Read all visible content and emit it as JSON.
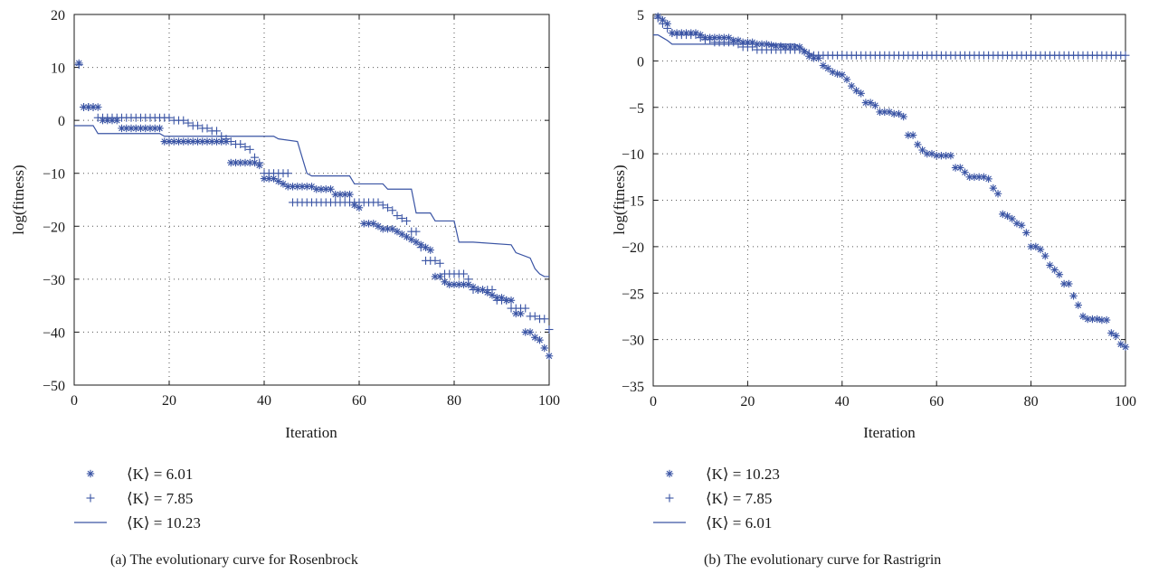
{
  "colors": {
    "series": "#3a54a4",
    "axis": "#1a1a1a",
    "grid": "#555555"
  },
  "chart_data": [
    {
      "type": "line",
      "caption": "(a)  The evolutionary curve for Rosenbrock",
      "xlabel": "Iteration",
      "ylabel": "log(fitness)",
      "xlim": [
        0,
        100
      ],
      "ylim": [
        -50,
        20
      ],
      "xticks": [
        "0",
        "20",
        "40",
        "60",
        "80",
        "100"
      ],
      "yticks": [
        "20",
        "10",
        "0",
        "−10",
        "−20",
        "−30",
        "−40",
        "−50"
      ],
      "grid": true,
      "legend_position": "below-left",
      "series": [
        {
          "name": "⟨K⟩ = 6.01",
          "marker": "asterisk",
          "x": [
            1,
            2,
            3,
            4,
            5,
            6,
            7,
            8,
            9,
            10,
            11,
            12,
            13,
            14,
            15,
            16,
            17,
            18,
            19,
            20,
            21,
            22,
            23,
            24,
            25,
            26,
            27,
            28,
            29,
            30,
            31,
            32,
            33,
            34,
            35,
            36,
            37,
            38,
            39,
            40,
            41,
            42,
            43,
            44,
            45,
            46,
            47,
            48,
            49,
            50,
            51,
            52,
            53,
            54,
            55,
            56,
            57,
            58,
            59,
            60,
            61,
            62,
            63,
            64,
            65,
            66,
            67,
            68,
            69,
            70,
            71,
            72,
            73,
            74,
            75,
            76,
            77,
            78,
            79,
            80,
            81,
            82,
            83,
            84,
            85,
            86,
            87,
            88,
            89,
            90,
            91,
            92,
            93,
            94,
            95,
            96,
            97,
            98,
            99,
            100
          ],
          "y": [
            10.8,
            2.5,
            2.5,
            2.5,
            2.5,
            0,
            0,
            0,
            0,
            -1.5,
            -1.5,
            -1.5,
            -1.5,
            -1.5,
            -1.5,
            -1.5,
            -1.5,
            -1.5,
            -4,
            -4,
            -4,
            -4,
            -4,
            -4,
            -4,
            -4,
            -4,
            -4,
            -4,
            -4,
            -4,
            -4,
            -8,
            -8,
            -8,
            -8,
            -8,
            -8,
            -8.5,
            -11,
            -11,
            -11,
            -11.5,
            -12,
            -12.5,
            -12.5,
            -12.5,
            -12.5,
            -12.5,
            -12.5,
            -13,
            -13,
            -13,
            -13,
            -14,
            -14,
            -14,
            -14,
            -16,
            -16.5,
            -19.5,
            -19.5,
            -19.5,
            -20,
            -20.5,
            -20.5,
            -20.5,
            -21,
            -21.5,
            -22,
            -22.5,
            -23,
            -23.5,
            -24,
            -24.5,
            -29.5,
            -29.5,
            -30.5,
            -31,
            -31,
            -31,
            -31,
            -31,
            -31.5,
            -32,
            -32,
            -32.5,
            -33,
            -33.5,
            -33.5,
            -34,
            -34,
            -36.5,
            -36.5,
            -40,
            -40,
            -41,
            -41.5,
            -43,
            -44.5
          ]
        },
        {
          "name": "⟨K⟩ = 7.85",
          "marker": "plus",
          "x": [
            1,
            2,
            3,
            4,
            5,
            6,
            7,
            8,
            9,
            10,
            11,
            12,
            13,
            14,
            15,
            16,
            17,
            18,
            19,
            20,
            21,
            22,
            23,
            24,
            25,
            26,
            27,
            28,
            29,
            30,
            31,
            32,
            33,
            34,
            35,
            36,
            37,
            38,
            39,
            40,
            41,
            42,
            43,
            44,
            45,
            46,
            47,
            48,
            49,
            50,
            51,
            52,
            53,
            54,
            55,
            56,
            57,
            58,
            59,
            60,
            61,
            62,
            63,
            64,
            65,
            66,
            67,
            68,
            69,
            70,
            71,
            72,
            73,
            74,
            75,
            76,
            77,
            78,
            79,
            80,
            81,
            82,
            83,
            84,
            85,
            86,
            87,
            88,
            89,
            90,
            91,
            92,
            93,
            94,
            95,
            96,
            97,
            98,
            99,
            100
          ],
          "y": [
            10.5,
            2.5,
            2.5,
            2.5,
            0.5,
            0.5,
            0.5,
            0.5,
            0.5,
            0.5,
            0.5,
            0.5,
            0.5,
            0.5,
            0.5,
            0.5,
            0.5,
            0.5,
            0.5,
            0.5,
            0,
            0,
            0,
            -0.5,
            -1,
            -1,
            -1.5,
            -1.5,
            -2,
            -2,
            -3,
            -3.5,
            -4,
            -4.5,
            -4.5,
            -5,
            -5.5,
            -7,
            -8,
            -10,
            -10,
            -10,
            -10,
            -10,
            -10,
            -15.5,
            -15.5,
            -15.5,
            -15.5,
            -15.5,
            -15.5,
            -15.5,
            -15.5,
            -15.5,
            -15.5,
            -15.5,
            -15.5,
            -15.5,
            -15.5,
            -15.5,
            -15.5,
            -15.5,
            -15.5,
            -15.5,
            -16,
            -16.5,
            -17,
            -18,
            -18.5,
            -19,
            -21,
            -21,
            -24,
            -26.5,
            -26.5,
            -26.5,
            -27,
            -29,
            -29,
            -29,
            -29,
            -29,
            -30,
            -32,
            -32,
            -32,
            -32,
            -32,
            -34,
            -34,
            -34,
            -35.5,
            -35.5,
            -35.5,
            -35.5,
            -37,
            -37,
            -37.5,
            -37.5,
            -39.5
          ]
        },
        {
          "name": "⟨K⟩ = 10.23",
          "marker": "line",
          "x": [
            0,
            4,
            5,
            18,
            19,
            30,
            31,
            42,
            43,
            47,
            48,
            49,
            50,
            58,
            59,
            65,
            66,
            71,
            72,
            75,
            76,
            80,
            81,
            83,
            84,
            92,
            93,
            96,
            97,
            98,
            99,
            100
          ],
          "y": [
            -1,
            -1,
            -2.5,
            -2.5,
            -3,
            -3,
            -3,
            -3,
            -3.5,
            -4,
            -7,
            -10,
            -10.5,
            -10.5,
            -12,
            -12,
            -13,
            -13,
            -17.5,
            -17.5,
            -19,
            -19,
            -23,
            -23,
            -23,
            -23.5,
            -25,
            -26,
            -28,
            -29,
            -29.5,
            -29.5
          ]
        }
      ]
    },
    {
      "type": "line",
      "caption": "(b)  The evolutionary curve for Rastrigrin",
      "xlabel": "Iteration",
      "ylabel": "log(fitness)",
      "xlim": [
        0,
        100
      ],
      "ylim": [
        -35,
        5
      ],
      "xticks": [
        "0",
        "20",
        "40",
        "60",
        "80",
        "100"
      ],
      "yticks": [
        "5",
        "0",
        "−5",
        "−10",
        "−15",
        "−20",
        "−25",
        "−30",
        "−35"
      ],
      "grid": true,
      "legend_position": "below-left",
      "series": [
        {
          "name": "⟨K⟩ = 10.23",
          "marker": "asterisk",
          "x": [
            1,
            2,
            3,
            4,
            5,
            6,
            7,
            8,
            9,
            10,
            11,
            12,
            13,
            14,
            15,
            16,
            17,
            18,
            19,
            20,
            21,
            22,
            23,
            24,
            25,
            26,
            27,
            28,
            29,
            30,
            31,
            32,
            33,
            34,
            35,
            36,
            37,
            38,
            39,
            40,
            41,
            42,
            43,
            44,
            45,
            46,
            47,
            48,
            49,
            50,
            51,
            52,
            53,
            54,
            55,
            56,
            57,
            58,
            59,
            60,
            61,
            62,
            63,
            64,
            65,
            66,
            67,
            68,
            69,
            70,
            71,
            72,
            73,
            74,
            75,
            76,
            77,
            78,
            79,
            80,
            81,
            82,
            83,
            84,
            85,
            86,
            87,
            88,
            89,
            90,
            91,
            92,
            93,
            94,
            95,
            96,
            97,
            98,
            99,
            100
          ],
          "y": [
            4.8,
            4.4,
            4,
            3,
            3,
            3,
            3,
            3,
            3,
            2.8,
            2.5,
            2.5,
            2.5,
            2.5,
            2.5,
            2.5,
            2.2,
            2.2,
            2,
            2,
            2,
            1.8,
            1.8,
            1.8,
            1.7,
            1.6,
            1.6,
            1.5,
            1.5,
            1.5,
            1.5,
            1,
            0.5,
            0.3,
            0.3,
            -0.5,
            -0.8,
            -1.2,
            -1.4,
            -1.5,
            -2,
            -2.7,
            -3.2,
            -3.5,
            -4.5,
            -4.5,
            -4.8,
            -5.5,
            -5.5,
            -5.5,
            -5.7,
            -5.7,
            -6,
            -8,
            -8,
            -9,
            -9.6,
            -10,
            -10,
            -10.2,
            -10.2,
            -10.2,
            -10.2,
            -11.5,
            -11.5,
            -12,
            -12.5,
            -12.5,
            -12.5,
            -12.5,
            -12.7,
            -13.7,
            -14.3,
            -16.5,
            -16.7,
            -17,
            -17.5,
            -17.7,
            -18.5,
            -20,
            -20,
            -20.3,
            -21,
            -22,
            -22.5,
            -23,
            -24,
            -24,
            -25.3,
            -26.3,
            -27.5,
            -27.8,
            -27.8,
            -27.8,
            -27.9,
            -27.9,
            -29.3,
            -29.6,
            -30.5,
            -30.8
          ]
        },
        {
          "name": "⟨K⟩ = 7.85",
          "marker": "plus",
          "x": [
            1,
            2,
            3,
            4,
            5,
            6,
            7,
            8,
            9,
            10,
            11,
            12,
            13,
            14,
            15,
            16,
            17,
            18,
            19,
            20,
            21,
            22,
            23,
            24,
            25,
            26,
            27,
            28,
            29,
            30,
            31,
            32,
            33,
            34,
            35,
            36,
            37,
            38,
            39,
            40,
            41,
            42,
            43,
            44,
            45,
            46,
            47,
            48,
            49,
            50,
            51,
            52,
            53,
            54,
            55,
            56,
            57,
            58,
            59,
            60,
            61,
            62,
            63,
            64,
            65,
            66,
            67,
            68,
            69,
            70,
            71,
            72,
            73,
            74,
            75,
            76,
            77,
            78,
            79,
            80,
            81,
            82,
            83,
            84,
            85,
            86,
            87,
            88,
            89,
            90,
            91,
            92,
            93,
            94,
            95,
            96,
            97,
            98,
            99,
            100
          ],
          "y": [
            4.6,
            4,
            3.5,
            3,
            2.8,
            2.8,
            2.8,
            2.8,
            2.8,
            2.5,
            2.3,
            2.3,
            2,
            2,
            2,
            2,
            2,
            1.8,
            1.5,
            1.5,
            1.5,
            1.2,
            1.2,
            1.2,
            1.2,
            1.2,
            1.2,
            1.2,
            1.2,
            1.2,
            1.2,
            1,
            0.8,
            0.6,
            0.6,
            0.6,
            0.6,
            0.6,
            0.6,
            0.6,
            0.6,
            0.6,
            0.6,
            0.6,
            0.6,
            0.6,
            0.6,
            0.6,
            0.6,
            0.6,
            0.6,
            0.6,
            0.6,
            0.6,
            0.6,
            0.6,
            0.6,
            0.6,
            0.6,
            0.6,
            0.6,
            0.6,
            0.6,
            0.6,
            0.6,
            0.6,
            0.6,
            0.6,
            0.6,
            0.6,
            0.6,
            0.6,
            0.6,
            0.6,
            0.6,
            0.6,
            0.6,
            0.6,
            0.6,
            0.6,
            0.6,
            0.6,
            0.6,
            0.6,
            0.6,
            0.6,
            0.6,
            0.6,
            0.6,
            0.6,
            0.6,
            0.6,
            0.6,
            0.6,
            0.6,
            0.6,
            0.6,
            0.6,
            0.6,
            0.6
          ]
        },
        {
          "name": "⟨K⟩ = 6.01",
          "marker": "line",
          "x": [
            0,
            1,
            2,
            3,
            4,
            5,
            30,
            31,
            32,
            33,
            34,
            100
          ],
          "y": [
            2.8,
            2.8,
            2.5,
            2.2,
            1.8,
            1.8,
            1.8,
            1.5,
            1.2,
            0.8,
            0.6,
            0.6
          ]
        }
      ]
    }
  ]
}
